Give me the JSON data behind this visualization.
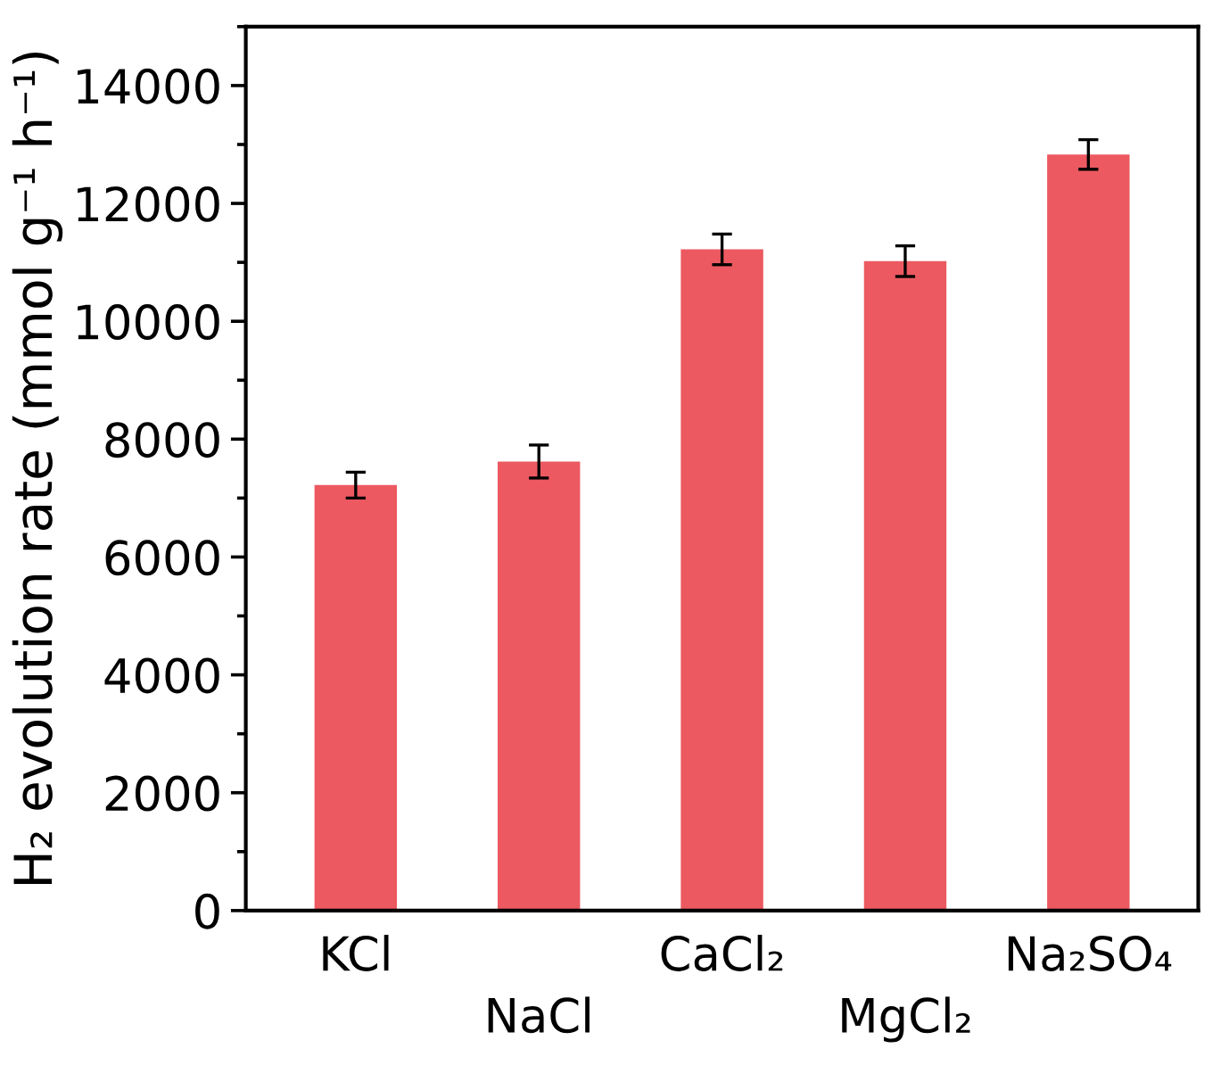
{
  "chart_data": {
    "type": "bar",
    "ylabel": "H₂ evolution rate (mmol g⁻¹ h⁻¹)",
    "categories": [
      "KCl",
      "NaCl",
      "CaCl₂",
      "MgCl₂",
      "Na₂SO₄"
    ],
    "values": [
      7220,
      7620,
      11220,
      11020,
      12830
    ],
    "errors": [
      220,
      280,
      260,
      260,
      250
    ],
    "color": "#ec5960",
    "ylim": [
      0,
      15000
    ],
    "yticks": [
      0,
      2000,
      4000,
      6000,
      8000,
      10000,
      12000,
      14000
    ],
    "grid": false,
    "legend": false
  }
}
